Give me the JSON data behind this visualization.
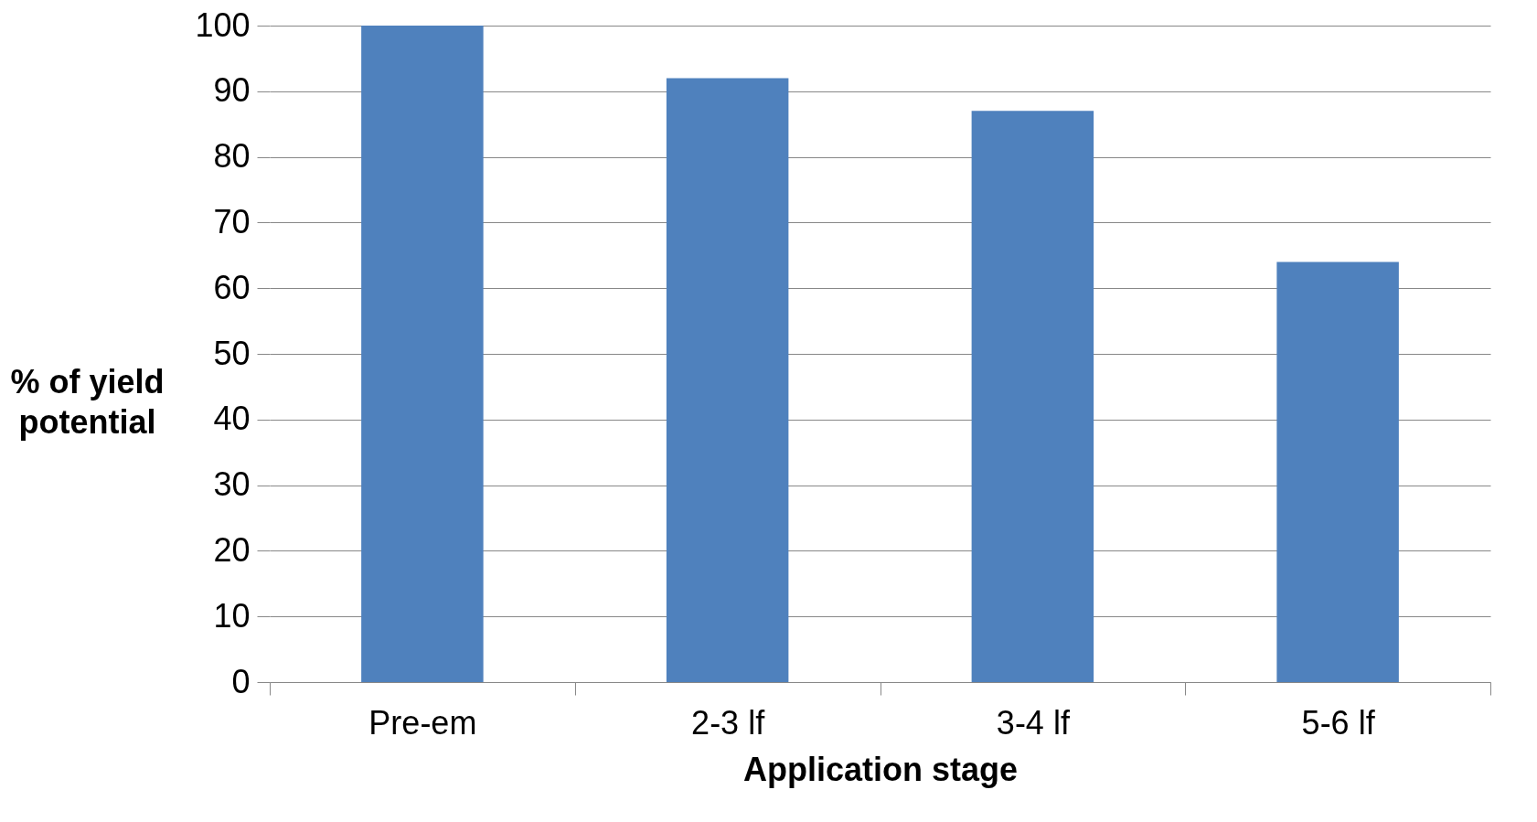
{
  "chart_data": {
    "type": "bar",
    "xlabel": "Application stage",
    "ylabel": "% of yield potential",
    "categories": [
      "Pre-em",
      "2-3 lf",
      "3-4 lf",
      "5-6 lf"
    ],
    "values": [
      100,
      92,
      87,
      64
    ],
    "color": "#4f81bd",
    "ylim": [
      0,
      100
    ],
    "yticks": [
      0,
      10,
      20,
      30,
      40,
      50,
      60,
      70,
      80,
      90,
      100
    ],
    "grid": "y"
  }
}
